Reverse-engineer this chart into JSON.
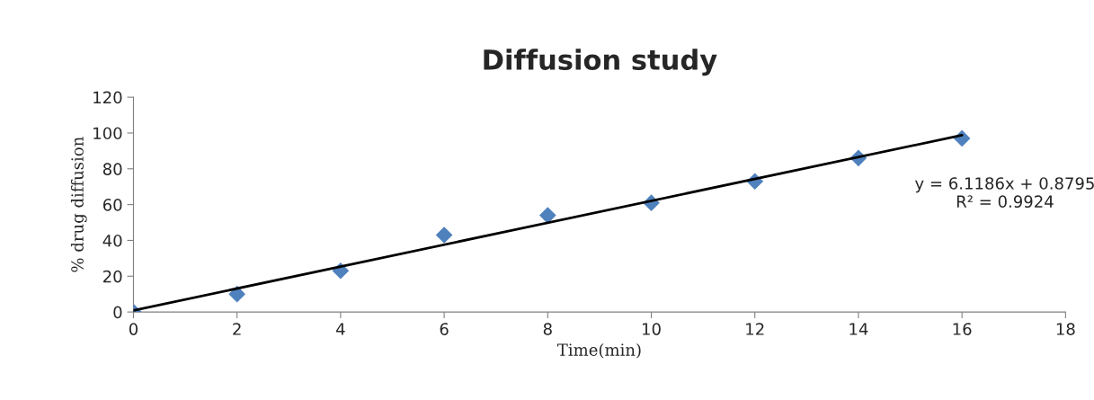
{
  "chart_data": {
    "type": "scatter",
    "title": "Diffusion study",
    "xlabel": "Time(min)",
    "ylabel": "% drug diffusion",
    "x": [
      0,
      2,
      4,
      6,
      8,
      10,
      12,
      14,
      16
    ],
    "series": [
      {
        "color": "#4f81bd",
        "marker": "diamond",
        "values": [
          0,
          10,
          23,
          43,
          54,
          61,
          73,
          86,
          97
        ]
      },
      {
        "type": "line",
        "color": "#000000",
        "marker": "none",
        "x": [
          0,
          16
        ],
        "values": [
          0.9,
          98.8
        ]
      }
    ],
    "annotations": [
      "y = 6.1186x + 0.8795\nR² = 0.9924"
    ],
    "xlim": [
      0,
      18
    ],
    "xticks": [
      0,
      2,
      4,
      6,
      8,
      10,
      12,
      14,
      16,
      18
    ],
    "ylim": [
      0,
      120
    ],
    "yticks": [
      0,
      20,
      40,
      60,
      80,
      100,
      120
    ],
    "grid": false,
    "legend": false
  }
}
